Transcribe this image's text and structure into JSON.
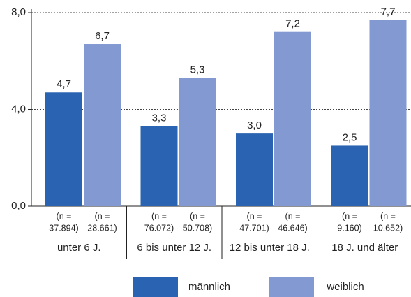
{
  "chart_data": {
    "type": "bar",
    "categories": [
      "unter 6 J.",
      "6 bis unter 12 J.",
      "12 bis unter 18 J.",
      "18 J. und älter"
    ],
    "series": [
      {
        "name": "männlich",
        "color": "#2a63b1",
        "values": [
          4.7,
          3.3,
          3.0,
          2.5
        ],
        "value_labels": [
          "4,7",
          "3,3",
          "3,0",
          "2,5"
        ],
        "annotations": [
          [
            "(n =",
            "37.894)"
          ],
          [
            "(n =",
            "76.072)"
          ],
          [
            "(n =",
            "47.701)"
          ],
          [
            "(n =",
            "9.160)"
          ]
        ]
      },
      {
        "name": "weiblich",
        "color": "#8299d2",
        "values": [
          6.7,
          5.3,
          7.2,
          7.7
        ],
        "value_labels": [
          "6,7",
          "5,3",
          "7,2",
          "7,7"
        ],
        "annotations": [
          [
            "(n =",
            "28.661)"
          ],
          [
            "(n =",
            "50.708)"
          ],
          [
            "(n =",
            "46.646)"
          ],
          [
            "(n =",
            "10.652)"
          ]
        ]
      }
    ],
    "ylim": [
      0,
      8
    ],
    "yticks": [
      {
        "value": 0,
        "label": "0,0"
      },
      {
        "value": 4,
        "label": "4,0"
      },
      {
        "value": 8,
        "label": "8,0"
      }
    ],
    "grid": true,
    "legend": "bottom"
  }
}
